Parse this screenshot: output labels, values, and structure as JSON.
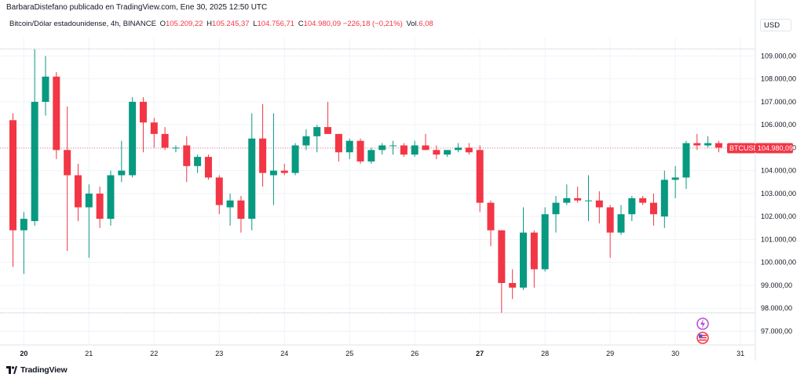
{
  "header": {
    "publisher_line": "BarbaraDistefano publicado en TradingView.com, Ene 30, 2025 12:50 UTC",
    "symbol_line": "Bitcoin/Dólar estadounidense, 4h, BINANCE",
    "ohlc": [
      {
        "key": "O",
        "value": "105.209,22"
      },
      {
        "key": "H",
        "value": "105.245,37"
      },
      {
        "key": "L",
        "value": "104.756,71"
      },
      {
        "key": "C",
        "value": "104.980,09"
      },
      {
        "key": "",
        "value": "−226,18 (−0,21%)"
      },
      {
        "key": "Vol.",
        "value": "6,08"
      }
    ],
    "currency": "USD"
  },
  "price_tag": {
    "symbol": "BTCUSD",
    "price": "104.980,09"
  },
  "footer": {
    "brand": "TradingView"
  },
  "colors": {
    "up": "#089981",
    "down": "#f23645",
    "grid": "#f0f3fa",
    "axis_text": "#131722"
  },
  "chart_data": {
    "type": "candlestick",
    "title": "",
    "xlabel": "",
    "ylabel": "",
    "ylim": [
      96400,
      109800
    ],
    "grid": true,
    "y_ticks": [
      {
        "value": 97000,
        "label": "97.000,00"
      },
      {
        "value": 98000,
        "label": "98.000,00"
      },
      {
        "value": 99000,
        "label": "99.000,00"
      },
      {
        "value": 100000,
        "label": "100.000,00"
      },
      {
        "value": 101000,
        "label": "101.000,00"
      },
      {
        "value": 102000,
        "label": "102.000,00"
      },
      {
        "value": 103000,
        "label": "103.000,00"
      },
      {
        "value": 104000,
        "label": "104.000,00"
      },
      {
        "value": 105000,
        "label": "105.000,00"
      },
      {
        "value": 106000,
        "label": "106.000,00"
      },
      {
        "value": 107000,
        "label": "107.000,00"
      },
      {
        "value": 108000,
        "label": "108.000,00"
      },
      {
        "value": 109000,
        "label": "109.000,00"
      }
    ],
    "x_ticks": [
      {
        "index": 1,
        "label": "20",
        "bold": true
      },
      {
        "index": 7,
        "label": "21",
        "bold": false
      },
      {
        "index": 13,
        "label": "22",
        "bold": false
      },
      {
        "index": 19,
        "label": "23",
        "bold": false
      },
      {
        "index": 25,
        "label": "24",
        "bold": false
      },
      {
        "index": 31,
        "label": "25",
        "bold": false
      },
      {
        "index": 37,
        "label": "26",
        "bold": false
      },
      {
        "index": 43,
        "label": "27",
        "bold": true
      },
      {
        "index": 49,
        "label": "28",
        "bold": false
      },
      {
        "index": 55,
        "label": "29",
        "bold": false
      },
      {
        "index": 61,
        "label": "30",
        "bold": false
      },
      {
        "index": 67,
        "label": "31",
        "bold": false
      }
    ],
    "candles": [
      {
        "o": 106200,
        "h": 106500,
        "l": 99800,
        "c": 101400
      },
      {
        "o": 101400,
        "h": 102200,
        "l": 99500,
        "c": 101900
      },
      {
        "o": 101800,
        "h": 109300,
        "l": 101600,
        "c": 107000
      },
      {
        "o": 107000,
        "h": 109000,
        "l": 106400,
        "c": 108100
      },
      {
        "o": 108100,
        "h": 108300,
        "l": 104500,
        "c": 104900
      },
      {
        "o": 104900,
        "h": 106800,
        "l": 100500,
        "c": 103800
      },
      {
        "o": 103800,
        "h": 104300,
        "l": 101800,
        "c": 102400
      },
      {
        "o": 102400,
        "h": 103400,
        "l": 100200,
        "c": 103000
      },
      {
        "o": 103000,
        "h": 103300,
        "l": 101500,
        "c": 101900
      },
      {
        "o": 101900,
        "h": 104000,
        "l": 101600,
        "c": 103800
      },
      {
        "o": 103800,
        "h": 105300,
        "l": 103500,
        "c": 104000
      },
      {
        "o": 103800,
        "h": 107200,
        "l": 103700,
        "c": 107000
      },
      {
        "o": 107000,
        "h": 107200,
        "l": 104800,
        "c": 106100
      },
      {
        "o": 106100,
        "h": 106300,
        "l": 105000,
        "c": 105600
      },
      {
        "o": 105600,
        "h": 105900,
        "l": 104900,
        "c": 105000
      },
      {
        "o": 105000,
        "h": 105100,
        "l": 104800,
        "c": 105000
      },
      {
        "o": 105100,
        "h": 105500,
        "l": 103500,
        "c": 104200
      },
      {
        "o": 104200,
        "h": 104700,
        "l": 103900,
        "c": 104600
      },
      {
        "o": 104600,
        "h": 104700,
        "l": 103600,
        "c": 103700
      },
      {
        "o": 103700,
        "h": 103800,
        "l": 102100,
        "c": 102500
      },
      {
        "o": 102400,
        "h": 103000,
        "l": 101600,
        "c": 102700
      },
      {
        "o": 102700,
        "h": 102900,
        "l": 101300,
        "c": 101900
      },
      {
        "o": 101900,
        "h": 106500,
        "l": 101400,
        "c": 105400
      },
      {
        "o": 105400,
        "h": 106900,
        "l": 103300,
        "c": 103900
      },
      {
        "o": 103800,
        "h": 106500,
        "l": 102500,
        "c": 104000
      },
      {
        "o": 104000,
        "h": 104300,
        "l": 103800,
        "c": 103900
      },
      {
        "o": 103900,
        "h": 105200,
        "l": 103800,
        "c": 105100
      },
      {
        "o": 105100,
        "h": 105800,
        "l": 104900,
        "c": 105500
      },
      {
        "o": 105500,
        "h": 106000,
        "l": 104800,
        "c": 105900
      },
      {
        "o": 105900,
        "h": 107000,
        "l": 105600,
        "c": 105600
      },
      {
        "o": 105600,
        "h": 105600,
        "l": 104400,
        "c": 104800
      },
      {
        "o": 104800,
        "h": 105400,
        "l": 104500,
        "c": 105300
      },
      {
        "o": 105300,
        "h": 105400,
        "l": 104300,
        "c": 104400
      },
      {
        "o": 104400,
        "h": 105000,
        "l": 104300,
        "c": 104900
      },
      {
        "o": 104900,
        "h": 105200,
        "l": 104700,
        "c": 105100
      },
      {
        "o": 105100,
        "h": 105300,
        "l": 104700,
        "c": 105100
      },
      {
        "o": 105100,
        "h": 105200,
        "l": 104600,
        "c": 104700
      },
      {
        "o": 104700,
        "h": 105300,
        "l": 104600,
        "c": 105100
      },
      {
        "o": 105100,
        "h": 105600,
        "l": 104900,
        "c": 104900
      },
      {
        "o": 104900,
        "h": 105100,
        "l": 104500,
        "c": 104700
      },
      {
        "o": 104700,
        "h": 104900,
        "l": 104600,
        "c": 104900
      },
      {
        "o": 104900,
        "h": 105200,
        "l": 104800,
        "c": 105000
      },
      {
        "o": 105000,
        "h": 105200,
        "l": 104700,
        "c": 104800
      },
      {
        "o": 104900,
        "h": 105100,
        "l": 102200,
        "c": 102600
      },
      {
        "o": 102600,
        "h": 102700,
        "l": 100700,
        "c": 101400
      },
      {
        "o": 101400,
        "h": 101400,
        "l": 97800,
        "c": 99100
      },
      {
        "o": 99100,
        "h": 99700,
        "l": 98400,
        "c": 98900
      },
      {
        "o": 98900,
        "h": 102400,
        "l": 98800,
        "c": 101300
      },
      {
        "o": 101300,
        "h": 101400,
        "l": 98900,
        "c": 99700
      },
      {
        "o": 99700,
        "h": 102400,
        "l": 99600,
        "c": 102100
      },
      {
        "o": 102100,
        "h": 102900,
        "l": 101300,
        "c": 102600
      },
      {
        "o": 102600,
        "h": 103400,
        "l": 102500,
        "c": 102800
      },
      {
        "o": 102800,
        "h": 103300,
        "l": 102600,
        "c": 102700
      },
      {
        "o": 102700,
        "h": 103800,
        "l": 101800,
        "c": 102700
      },
      {
        "o": 102700,
        "h": 103100,
        "l": 101700,
        "c": 102400
      },
      {
        "o": 102400,
        "h": 102500,
        "l": 100200,
        "c": 101300
      },
      {
        "o": 101300,
        "h": 102500,
        "l": 101200,
        "c": 102100
      },
      {
        "o": 102100,
        "h": 102900,
        "l": 101800,
        "c": 102800
      },
      {
        "o": 102800,
        "h": 102900,
        "l": 102500,
        "c": 102600
      },
      {
        "o": 102600,
        "h": 103000,
        "l": 101600,
        "c": 102100
      },
      {
        "o": 102000,
        "h": 104000,
        "l": 101500,
        "c": 103600
      },
      {
        "o": 103600,
        "h": 104200,
        "l": 102800,
        "c": 103700
      },
      {
        "o": 103700,
        "h": 105300,
        "l": 103200,
        "c": 105200
      },
      {
        "o": 105200,
        "h": 105600,
        "l": 104900,
        "c": 105100
      },
      {
        "o": 105100,
        "h": 105500,
        "l": 105000,
        "c": 105200
      },
      {
        "o": 105200,
        "h": 105300,
        "l": 104800,
        "c": 105000
      }
    ],
    "guide_lines": [
      109300,
      97800
    ],
    "last_price": 104980.09
  }
}
